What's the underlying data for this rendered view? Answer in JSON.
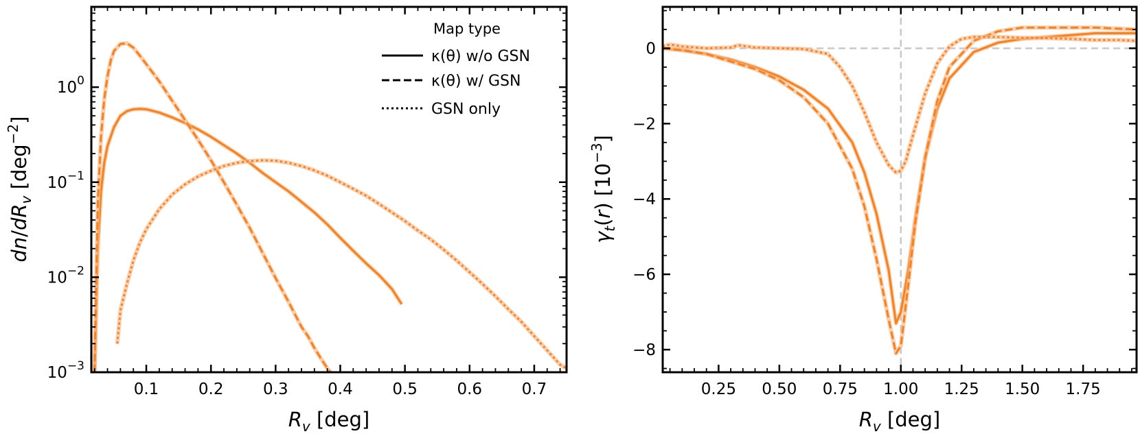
{
  "colors": {
    "series": "#f5821f",
    "band": "#f9b98a",
    "refline": "#c8c8c8"
  },
  "legend": {
    "title": "Map type",
    "entries": [
      {
        "label": "κ(θ) w/o GSN",
        "style": "solid"
      },
      {
        "label": "κ(θ) w/ GSN",
        "style": "dashed"
      },
      {
        "label": "GSN only",
        "style": "dotted"
      }
    ]
  },
  "chart_data": [
    {
      "type": "line",
      "yscale": "log",
      "xlabel": "R_v [deg]",
      "ylabel": "dn/dR_v [deg^-2]",
      "xlim": [
        0.015,
        0.75
      ],
      "ylim": [
        0.001,
        7
      ],
      "xticks": [
        0.1,
        0.2,
        0.3,
        0.4,
        0.5,
        0.6,
        0.7
      ],
      "xtick_labels": [
        "0.1",
        "0.2",
        "0.3",
        "0.4",
        "0.5",
        "0.6",
        "0.7"
      ],
      "yticks": [
        0.001,
        0.01,
        0.1,
        1
      ],
      "ytick_base": "10",
      "ytick_exps": [
        "−3",
        "−2",
        "−1",
        "0"
      ],
      "legend_position": "top-right",
      "series": [
        {
          "name": "κ(θ) w/o GSN",
          "style": "solid",
          "x": [
            0.02,
            0.025,
            0.03,
            0.035,
            0.04,
            0.05,
            0.06,
            0.07,
            0.08,
            0.09,
            0.1,
            0.12,
            0.14,
            0.16,
            0.18,
            0.2,
            0.22,
            0.24,
            0.26,
            0.28,
            0.3,
            0.32,
            0.34,
            0.36,
            0.38,
            0.4,
            0.42,
            0.44,
            0.46,
            0.48,
            0.495
          ],
          "y": [
            0.001,
            0.02,
            0.08,
            0.16,
            0.24,
            0.38,
            0.5,
            0.56,
            0.585,
            0.59,
            0.585,
            0.54,
            0.48,
            0.42,
            0.36,
            0.3,
            0.245,
            0.2,
            0.16,
            0.125,
            0.1,
            0.08,
            0.062,
            0.048,
            0.036,
            0.026,
            0.019,
            0.014,
            0.0105,
            0.0075,
            0.0052
          ]
        },
        {
          "name": "κ(θ) w/ GSN",
          "style": "dashed",
          "x": [
            0.02,
            0.025,
            0.03,
            0.035,
            0.04,
            0.045,
            0.05,
            0.06,
            0.07,
            0.08,
            0.09,
            0.1,
            0.12,
            0.14,
            0.16,
            0.18,
            0.2,
            0.22,
            0.24,
            0.26,
            0.28,
            0.3,
            0.32,
            0.34,
            0.35,
            0.36,
            0.37,
            0.38,
            0.385
          ],
          "y": [
            0.001,
            0.06,
            0.3,
            0.75,
            1.3,
            1.9,
            2.4,
            2.85,
            2.9,
            2.6,
            2.15,
            1.75,
            1.15,
            0.72,
            0.45,
            0.28,
            0.17,
            0.1,
            0.058,
            0.033,
            0.018,
            0.0098,
            0.0055,
            0.003,
            0.0024,
            0.0018,
            0.0014,
            0.0011,
            0.001
          ]
        },
        {
          "name": "GSN only",
          "style": "dotted",
          "x": [
            0.055,
            0.06,
            0.07,
            0.08,
            0.09,
            0.1,
            0.12,
            0.14,
            0.16,
            0.18,
            0.2,
            0.22,
            0.24,
            0.26,
            0.28,
            0.3,
            0.32,
            0.34,
            0.36,
            0.38,
            0.4,
            0.42,
            0.44,
            0.46,
            0.48,
            0.5,
            0.52,
            0.54,
            0.56,
            0.58,
            0.6,
            0.62,
            0.64,
            0.66,
            0.68,
            0.7,
            0.72,
            0.74,
            0.75
          ],
          "y": [
            0.002,
            0.0045,
            0.0085,
            0.015,
            0.023,
            0.032,
            0.052,
            0.074,
            0.095,
            0.115,
            0.132,
            0.148,
            0.16,
            0.167,
            0.17,
            0.168,
            0.16,
            0.148,
            0.133,
            0.117,
            0.1,
            0.085,
            0.072,
            0.059,
            0.048,
            0.039,
            0.031,
            0.025,
            0.0195,
            0.015,
            0.0113,
            0.0085,
            0.0063,
            0.0046,
            0.0034,
            0.0024,
            0.0017,
            0.0012,
            0.0011
          ]
        }
      ]
    },
    {
      "type": "line",
      "yscale": "linear",
      "xlabel": "R_v [deg]",
      "ylabel": "γ_t(r) [10^-3]",
      "xlim": [
        0.02,
        1.97
      ],
      "ylim": [
        -8.6,
        1.1
      ],
      "xticks": [
        0.25,
        0.5,
        0.75,
        1.0,
        1.25,
        1.5,
        1.75
      ],
      "xtick_labels": [
        "0.25",
        "0.50",
        "0.75",
        "1.00",
        "1.25",
        "1.50",
        "1.75"
      ],
      "yticks": [
        -8,
        -6,
        -4,
        -2,
        0
      ],
      "ytick_labels": [
        "−8",
        "−6",
        "−4",
        "−2",
        "0"
      ],
      "reference_lines": {
        "x": 1.0,
        "y": 0
      },
      "series": [
        {
          "name": "κ(θ) w/o GSN",
          "style": "solid",
          "x": [
            0.02,
            0.1,
            0.2,
            0.3,
            0.4,
            0.5,
            0.6,
            0.7,
            0.8,
            0.85,
            0.9,
            0.95,
            0.98,
            1.0,
            1.03,
            1.06,
            1.1,
            1.15,
            1.2,
            1.3,
            1.4,
            1.5,
            1.6,
            1.7,
            1.8,
            1.9,
            1.97
          ],
          "y": [
            0.0,
            -0.05,
            -0.15,
            -0.3,
            -0.5,
            -0.75,
            -1.1,
            -1.6,
            -2.5,
            -3.3,
            -4.4,
            -5.9,
            -7.3,
            -7.0,
            -5.9,
            -4.5,
            -2.9,
            -1.6,
            -0.8,
            -0.1,
            0.15,
            0.25,
            0.3,
            0.35,
            0.4,
            0.4,
            0.4
          ]
        },
        {
          "name": "κ(θ) w/ GSN",
          "style": "dashed",
          "x": [
            0.02,
            0.1,
            0.2,
            0.3,
            0.4,
            0.5,
            0.6,
            0.7,
            0.8,
            0.85,
            0.9,
            0.95,
            0.98,
            1.0,
            1.03,
            1.06,
            1.1,
            1.15,
            1.2,
            1.3,
            1.4,
            1.5,
            1.6,
            1.7,
            1.8,
            1.9,
            1.97
          ],
          "y": [
            0.0,
            -0.05,
            -0.15,
            -0.35,
            -0.55,
            -0.85,
            -1.3,
            -2.0,
            -3.2,
            -4.2,
            -5.6,
            -7.2,
            -8.1,
            -7.9,
            -6.3,
            -4.6,
            -2.9,
            -1.4,
            -0.5,
            0.2,
            0.45,
            0.55,
            0.55,
            0.55,
            0.55,
            0.52,
            0.5
          ]
        },
        {
          "name": "GSN only",
          "style": "dotted",
          "x": [
            0.02,
            0.05,
            0.1,
            0.2,
            0.3,
            0.33,
            0.4,
            0.5,
            0.6,
            0.7,
            0.75,
            0.8,
            0.85,
            0.9,
            0.95,
            0.98,
            1.0,
            1.02,
            1.05,
            1.1,
            1.15,
            1.2,
            1.25,
            1.3,
            1.4,
            1.5,
            1.6,
            1.7,
            1.8,
            1.9,
            1.97
          ],
          "y": [
            0.05,
            0.1,
            0.05,
            0.0,
            0.02,
            0.08,
            0.02,
            0.0,
            -0.02,
            -0.15,
            -0.5,
            -1.0,
            -1.7,
            -2.5,
            -3.1,
            -3.3,
            -3.25,
            -3.0,
            -2.3,
            -1.2,
            -0.4,
            0.05,
            0.25,
            0.3,
            0.3,
            0.28,
            0.27,
            0.25,
            0.22,
            0.22,
            0.2
          ]
        }
      ]
    }
  ]
}
